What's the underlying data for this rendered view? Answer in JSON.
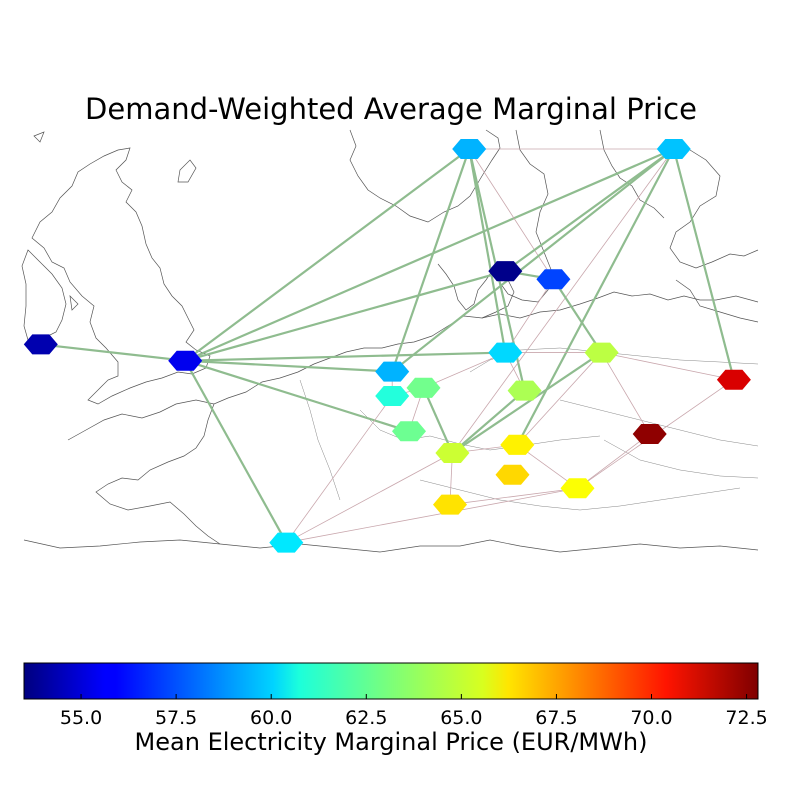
{
  "title": "Demand-Weighted Average Marginal Price",
  "colorbar": {
    "label": "Mean Electricity Marginal Price (EUR/MWh)",
    "min": 53.5,
    "max": 72.8,
    "ticks": [
      "55.0",
      "57.5",
      "60.0",
      "62.5",
      "65.0",
      "67.5",
      "70.0",
      "72.5"
    ],
    "colormap": "jet"
  },
  "map": {
    "region": "Northwestern Europe",
    "node_shape": "hexagon",
    "line_colors": {
      "major": "#8fbc8f",
      "minor": "#c9a7ad"
    }
  },
  "nodes": [
    {
      "id": "IE",
      "lon": -7.8,
      "lat": 53.3,
      "price": 54.4
    },
    {
      "id": "GB",
      "lon": -1.8,
      "lat": 52.7,
      "price": 55.6
    },
    {
      "id": "FR",
      "lon": 2.4,
      "lat": 46.0,
      "price": 60.3
    },
    {
      "id": "NO",
      "lon": 10.0,
      "lat": 60.5,
      "price": 59.3
    },
    {
      "id": "SE",
      "lon": 18.5,
      "lat": 60.5,
      "price": 59.6
    },
    {
      "id": "DK",
      "lon": 11.5,
      "lat": 56.0,
      "price": 53.7
    },
    {
      "id": "DK2",
      "lon": 13.5,
      "lat": 55.7,
      "price": 57.2
    },
    {
      "id": "NL",
      "lon": 6.8,
      "lat": 52.3,
      "price": 59.3
    },
    {
      "id": "BE",
      "lon": 6.8,
      "lat": 51.4,
      "price": 61.4
    },
    {
      "id": "LU",
      "lon": 8.1,
      "lat": 51.7,
      "price": 62.9
    },
    {
      "id": "DE",
      "lon": 11.5,
      "lat": 53.0,
      "price": 60.0
    },
    {
      "id": "DE2",
      "lon": 12.3,
      "lat": 51.6,
      "price": 64.0
    },
    {
      "id": "PL",
      "lon": 15.5,
      "lat": 53.0,
      "price": 64.3
    },
    {
      "id": "PL2",
      "lon": 21.0,
      "lat": 52.0,
      "price": 71.1
    },
    {
      "id": "CH",
      "lon": 7.5,
      "lat": 50.1,
      "price": 62.8
    },
    {
      "id": "AT",
      "lon": 9.3,
      "lat": 49.3,
      "price": 64.6
    },
    {
      "id": "CZ",
      "lon": 12.0,
      "lat": 49.6,
      "price": 65.8
    },
    {
      "id": "SK",
      "lon": 17.5,
      "lat": 50.0,
      "price": 72.5
    },
    {
      "id": "IT",
      "lon": 9.2,
      "lat": 47.4,
      "price": 66.1
    },
    {
      "id": "SI",
      "lon": 14.5,
      "lat": 48.0,
      "price": 65.5
    },
    {
      "id": "HU",
      "lon": 11.8,
      "lat": 48.5,
      "price": 66.3
    }
  ],
  "lines": [
    {
      "from": "IE",
      "to": "GB",
      "type": "major"
    },
    {
      "from": "GB",
      "to": "NO",
      "type": "major"
    },
    {
      "from": "GB",
      "to": "SE",
      "type": "major"
    },
    {
      "from": "GB",
      "to": "DK",
      "type": "major"
    },
    {
      "from": "GB",
      "to": "DE",
      "type": "major"
    },
    {
      "from": "GB",
      "to": "NL",
      "type": "major"
    },
    {
      "from": "GB",
      "to": "CH",
      "type": "major"
    },
    {
      "from": "GB",
      "to": "FR",
      "type": "major"
    },
    {
      "from": "NO",
      "to": "SE",
      "type": "minor"
    },
    {
      "from": "NO",
      "to": "NL",
      "type": "major"
    },
    {
      "from": "NO",
      "to": "DE",
      "type": "major"
    },
    {
      "from": "NO",
      "to": "DE2",
      "type": "major"
    },
    {
      "from": "NO",
      "to": "DK2",
      "type": "minor"
    },
    {
      "from": "SE",
      "to": "NL",
      "type": "major"
    },
    {
      "from": "SE",
      "to": "DK",
      "type": "major"
    },
    {
      "from": "SE",
      "to": "CZ",
      "type": "major"
    },
    {
      "from": "SE",
      "to": "PL2",
      "type": "major"
    },
    {
      "from": "SE",
      "to": "AT",
      "type": "minor"
    },
    {
      "from": "DK",
      "to": "DK2",
      "type": "major"
    },
    {
      "from": "DK2",
      "to": "PL",
      "type": "major"
    },
    {
      "from": "DK2",
      "to": "DE",
      "type": "minor"
    },
    {
      "from": "DE2",
      "to": "AT",
      "type": "major"
    },
    {
      "from": "NL",
      "to": "BE",
      "type": "minor"
    },
    {
      "from": "BE",
      "to": "LU",
      "type": "minor"
    },
    {
      "from": "LU",
      "to": "CH",
      "type": "minor"
    },
    {
      "from": "LU",
      "to": "DE",
      "type": "minor"
    },
    {
      "from": "LU",
      "to": "AT",
      "type": "major"
    },
    {
      "from": "DE",
      "to": "PL",
      "type": "minor"
    },
    {
      "from": "DE",
      "to": "DE2",
      "type": "minor"
    },
    {
      "from": "PL",
      "to": "PL2",
      "type": "minor"
    },
    {
      "from": "PL",
      "to": "SK",
      "type": "minor"
    },
    {
      "from": "PL",
      "to": "AT",
      "type": "major"
    },
    {
      "from": "PL",
      "to": "CZ",
      "type": "minor"
    },
    {
      "from": "CZ",
      "to": "SI",
      "type": "minor"
    },
    {
      "from": "AT",
      "to": "FR",
      "type": "minor"
    },
    {
      "from": "AT",
      "to": "IT",
      "type": "minor"
    },
    {
      "from": "AT",
      "to": "CZ",
      "type": "minor"
    },
    {
      "from": "FR",
      "to": "SI",
      "type": "minor"
    },
    {
      "from": "FR",
      "to": "BE",
      "type": "minor"
    },
    {
      "from": "IT",
      "to": "SI",
      "type": "minor"
    },
    {
      "from": "SI",
      "to": "SK",
      "type": "minor"
    },
    {
      "from": "SI",
      "to": "PL2",
      "type": "minor"
    }
  ]
}
